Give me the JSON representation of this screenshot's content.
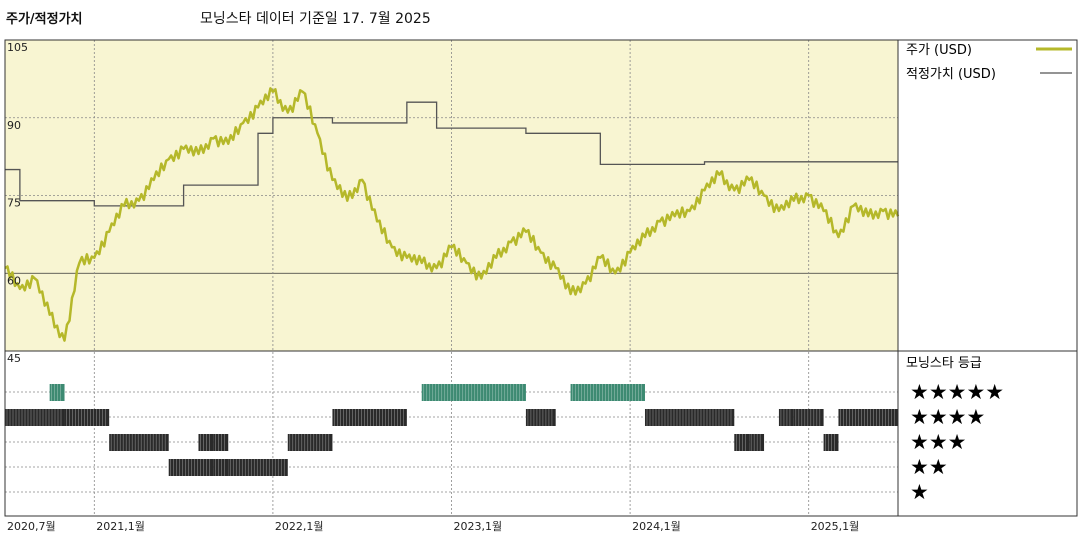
{
  "header": {
    "title": "주가/적정가치",
    "subtitle": "모닝스타 데이터 기준일 17. 7월 2025"
  },
  "legend": {
    "price_label": "주가 (USD)",
    "fair_value_label": "적정가치 (USD)",
    "rating_title": "모닝스타 등급",
    "star_rows": [
      "★★★★★",
      "★★★★",
      "★★★",
      "★★",
      "★"
    ]
  },
  "colors": {
    "plot_background": "#f8f5d2",
    "price_line": "#b5b82a",
    "fair_value_line": "#555555",
    "rating_5_star": "#3d8a72",
    "rating_bars": "#2a2a2a",
    "grid": "#888888"
  },
  "chart_data": {
    "type": "line",
    "x_range": [
      "2020-07",
      "2025-07"
    ],
    "ylim": [
      45,
      105
    ],
    "y_ticks": [
      "105",
      "90",
      "75",
      "60",
      "45"
    ],
    "x_ticks": [
      "2020,7월",
      "2021,1월",
      "2022,1월",
      "2023,1월",
      "2024,1월",
      "2025,1월"
    ],
    "price_usd": [
      [
        "2020-07",
        61
      ],
      [
        "2020-08",
        57
      ],
      [
        "2020-09",
        59
      ],
      [
        "2020-10",
        52
      ],
      [
        "2020-11",
        47
      ],
      [
        "2020-12",
        62
      ],
      [
        "2021-01",
        63
      ],
      [
        "2021-02",
        68
      ],
      [
        "2021-03",
        73
      ],
      [
        "2021-04",
        74
      ],
      [
        "2021-05",
        78
      ],
      [
        "2021-06",
        82
      ],
      [
        "2021-07",
        84
      ],
      [
        "2021-08",
        83
      ],
      [
        "2021-09",
        86
      ],
      [
        "2021-10",
        85
      ],
      [
        "2021-11",
        89
      ],
      [
        "2021-12",
        92
      ],
      [
        "2022-01",
        95
      ],
      [
        "2022-02",
        91
      ],
      [
        "2022-03",
        95
      ],
      [
        "2022-04",
        87
      ],
      [
        "2022-05",
        78
      ],
      [
        "2022-06",
        74
      ],
      [
        "2022-07",
        78
      ],
      [
        "2022-08",
        70
      ],
      [
        "2022-09",
        65
      ],
      [
        "2022-10",
        63
      ],
      [
        "2022-11",
        62
      ],
      [
        "2022-12",
        61
      ],
      [
        "2023-01",
        65
      ],
      [
        "2023-02",
        62
      ],
      [
        "2023-03",
        59
      ],
      [
        "2023-04",
        63
      ],
      [
        "2023-05",
        66
      ],
      [
        "2023-06",
        68
      ],
      [
        "2023-07",
        64
      ],
      [
        "2023-08",
        61
      ],
      [
        "2023-09",
        56
      ],
      [
        "2023-10",
        58
      ],
      [
        "2023-11",
        63
      ],
      [
        "2023-12",
        60
      ],
      [
        "2024-01",
        64
      ],
      [
        "2024-02",
        67
      ],
      [
        "2024-03",
        70
      ],
      [
        "2024-04",
        71
      ],
      [
        "2024-05",
        72
      ],
      [
        "2024-06",
        76
      ],
      [
        "2024-07",
        79
      ],
      [
        "2024-08",
        76
      ],
      [
        "2024-09",
        78
      ],
      [
        "2024-10",
        75
      ],
      [
        "2024-11",
        72
      ],
      [
        "2024-12",
        74
      ],
      [
        "2025-01",
        75
      ],
      [
        "2025-02",
        72
      ],
      [
        "2025-03",
        67
      ],
      [
        "2025-04",
        73
      ],
      [
        "2025-05",
        71
      ],
      [
        "2025-06",
        72
      ],
      [
        "2025-07",
        71
      ]
    ],
    "fair_value_usd": [
      [
        "2020-07",
        80
      ],
      [
        "2020-08",
        74
      ],
      [
        "2021-01",
        73
      ],
      [
        "2021-07",
        77
      ],
      [
        "2021-12",
        87
      ],
      [
        "2022-01",
        90
      ],
      [
        "2022-05",
        89
      ],
      [
        "2022-10",
        93
      ],
      [
        "2022-12",
        88
      ],
      [
        "2023-06",
        87
      ],
      [
        "2023-11",
        81
      ],
      [
        "2024-06",
        81.5
      ],
      [
        "2025-07",
        81.5
      ]
    ],
    "ratings": [
      {
        "stars": 5,
        "start": "2020-10",
        "end": "2020-11"
      },
      {
        "stars": 4,
        "start": "2020-07",
        "end": "2020-11"
      },
      {
        "stars": 4,
        "start": "2020-11",
        "end": "2021-02"
      },
      {
        "stars": 3,
        "start": "2021-02",
        "end": "2021-06"
      },
      {
        "stars": 2,
        "start": "2021-06",
        "end": "2021-09"
      },
      {
        "stars": 2,
        "start": "2021-09",
        "end": "2021-10"
      },
      {
        "stars": 3,
        "start": "2021-08",
        "end": "2021-09"
      },
      {
        "stars": 3,
        "start": "2021-09",
        "end": "2021-10"
      },
      {
        "stars": 2,
        "start": "2021-10",
        "end": "2022-02"
      },
      {
        "stars": 3,
        "start": "2022-02",
        "end": "2022-05"
      },
      {
        "stars": 4,
        "start": "2022-05",
        "end": "2022-10"
      },
      {
        "stars": 5,
        "start": "2022-11",
        "end": "2023-06"
      },
      {
        "stars": 4,
        "start": "2023-06",
        "end": "2023-08"
      },
      {
        "stars": 5,
        "start": "2023-09",
        "end": "2024-02"
      },
      {
        "stars": 4,
        "start": "2024-02",
        "end": "2024-08"
      },
      {
        "stars": 3,
        "start": "2024-08",
        "end": "2024-09"
      },
      {
        "stars": 3,
        "start": "2024-09",
        "end": "2024-10"
      },
      {
        "stars": 4,
        "start": "2024-11",
        "end": "2024-12"
      },
      {
        "stars": 4,
        "start": "2024-12",
        "end": "2025-02"
      },
      {
        "stars": 3,
        "start": "2025-02",
        "end": "2025-03"
      },
      {
        "stars": 4,
        "start": "2025-03",
        "end": "2025-07"
      }
    ]
  }
}
